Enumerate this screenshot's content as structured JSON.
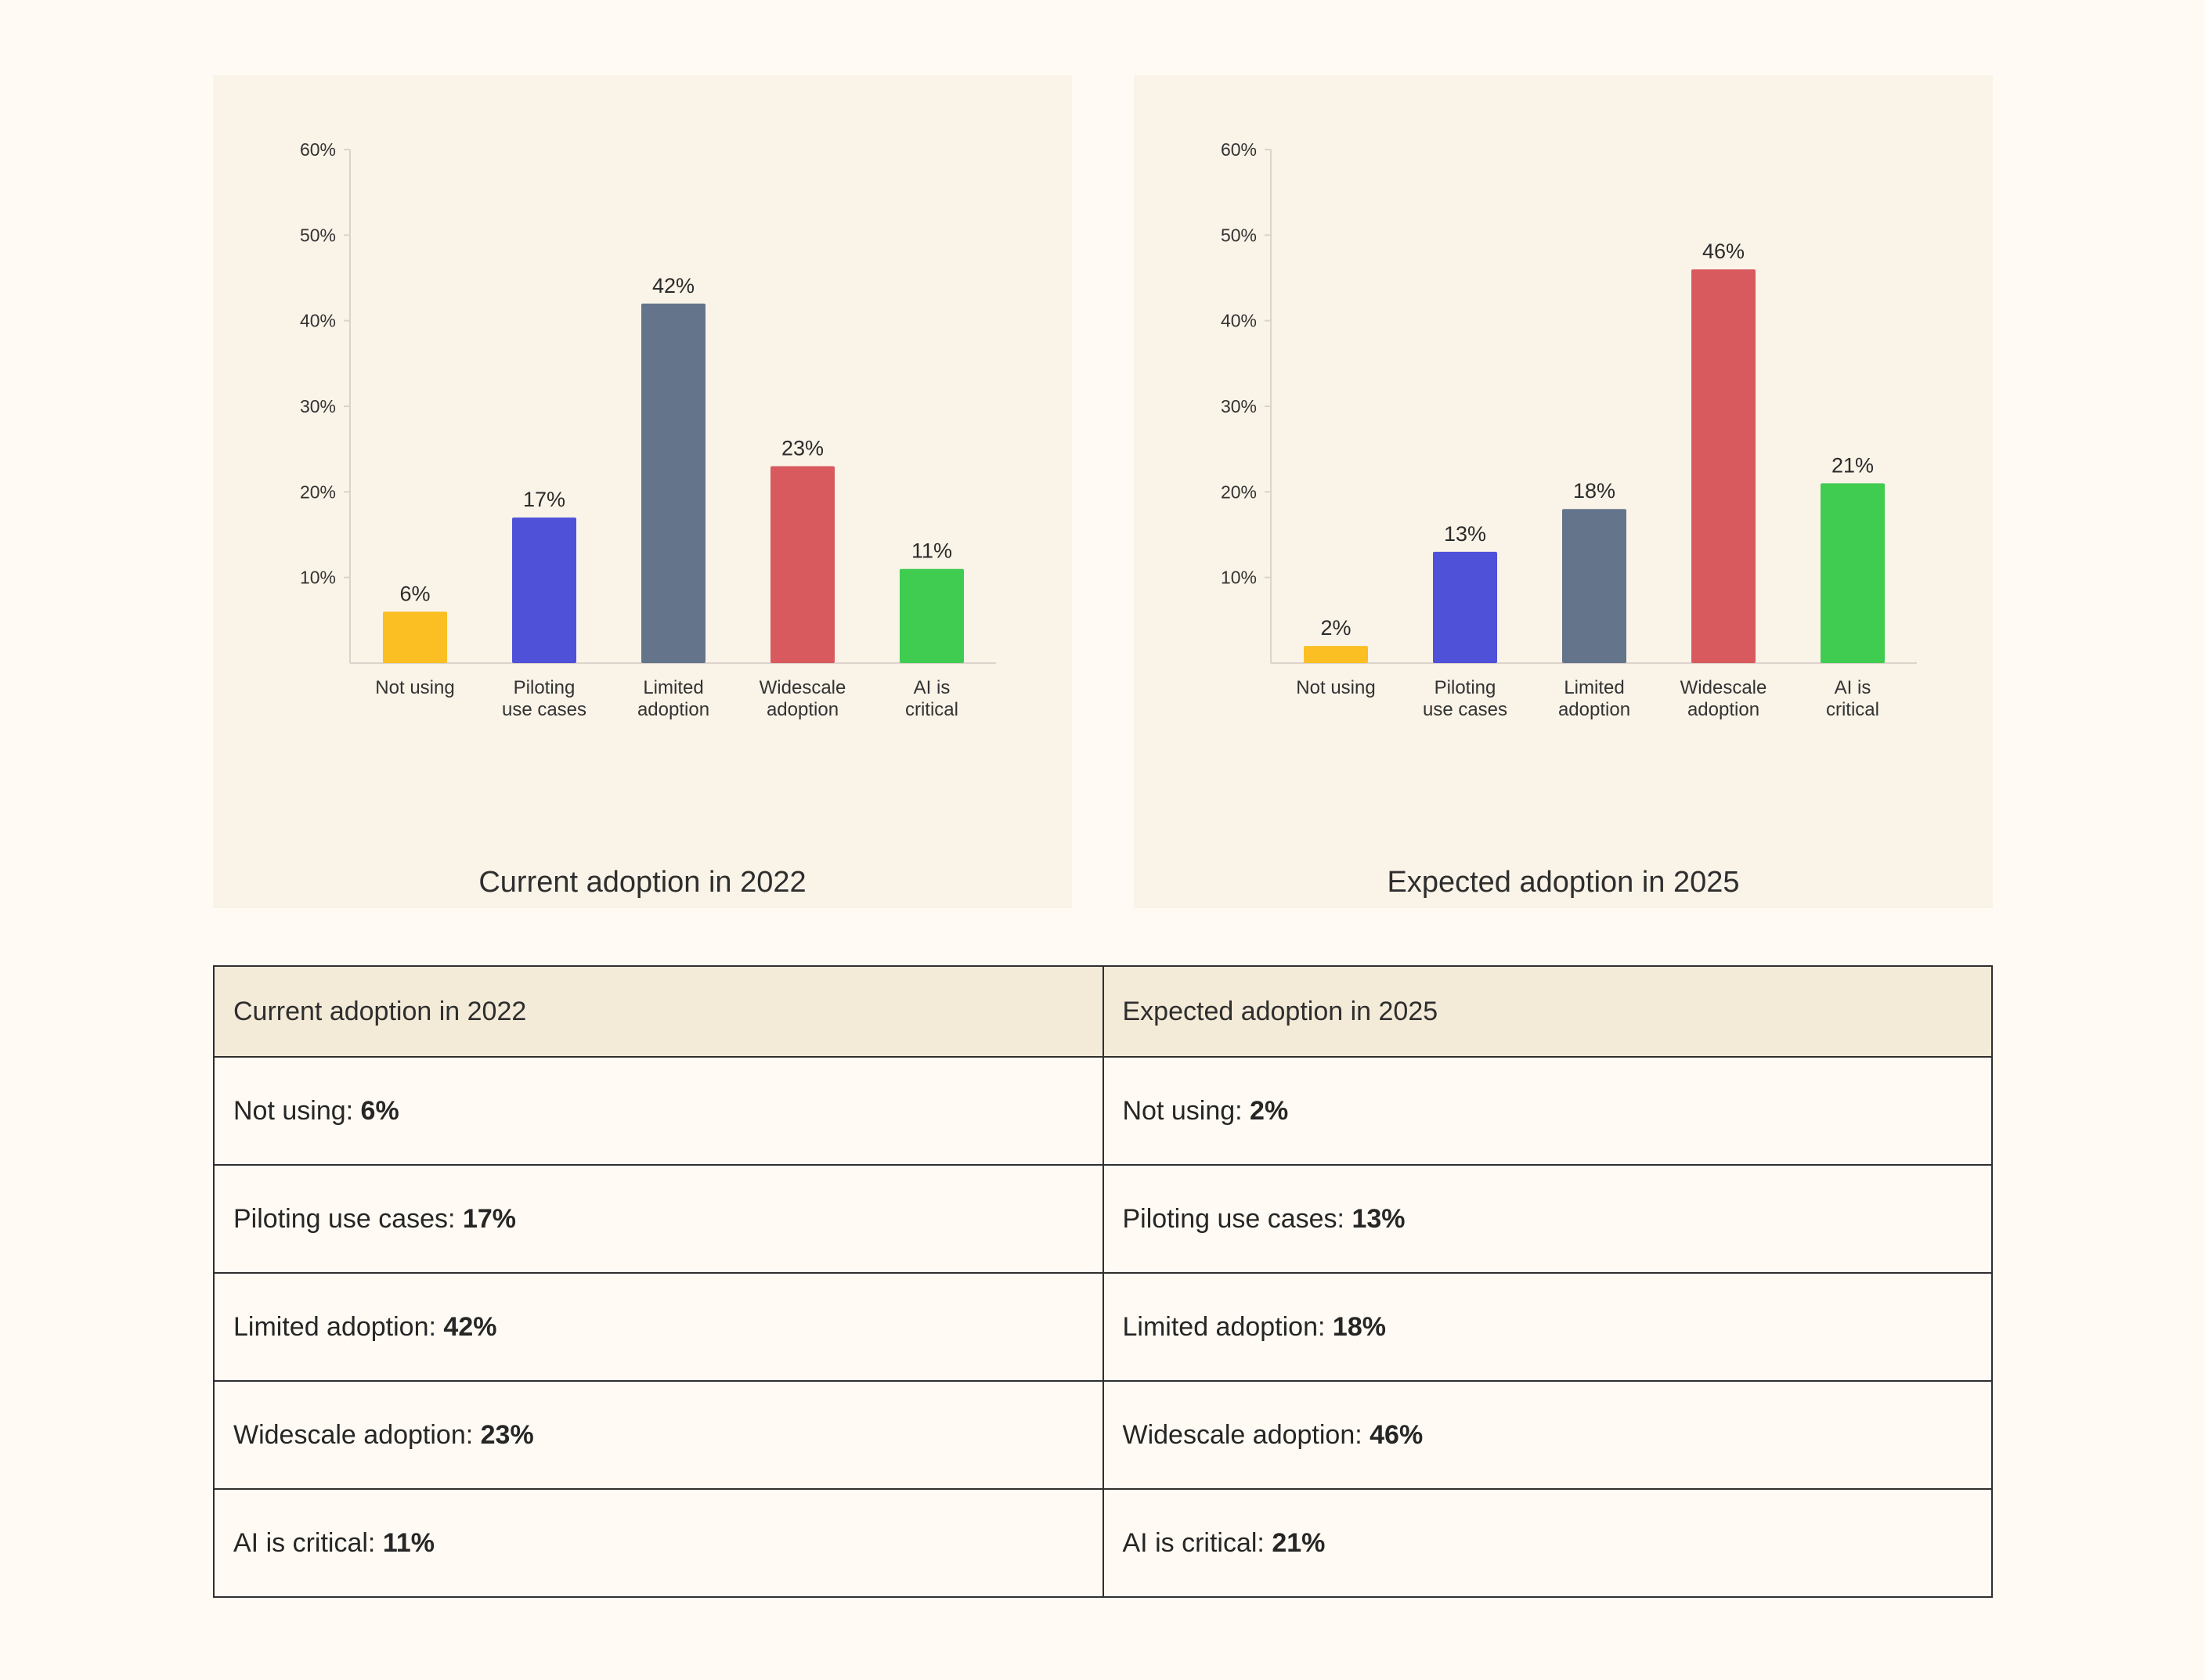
{
  "chart_data": [
    {
      "type": "bar",
      "title": "Current adoption in 2022",
      "categories": [
        [
          "Not using"
        ],
        [
          "Piloting",
          "use cases"
        ],
        [
          "Limited",
          "adoption"
        ],
        [
          "Widescale",
          "adoption"
        ],
        [
          "AI is",
          "critical"
        ]
      ],
      "values": [
        6,
        17,
        42,
        23,
        11
      ],
      "value_labels": [
        "6%",
        "17%",
        "42%",
        "23%",
        "11%"
      ],
      "yticks": [
        "10%",
        "20%",
        "30%",
        "40%",
        "50%",
        "60%"
      ],
      "ylim": [
        0,
        60
      ],
      "colors": [
        "#fbbf24",
        "#4f52d9",
        "#64748b",
        "#d85a5e",
        "#40cb51"
      ],
      "grid": false,
      "legend": "none"
    },
    {
      "type": "bar",
      "title": "Expected adoption in 2025",
      "categories": [
        [
          "Not using"
        ],
        [
          "Piloting",
          "use cases"
        ],
        [
          "Limited",
          "adoption"
        ],
        [
          "Widescale",
          "adoption"
        ],
        [
          "AI is",
          "critical"
        ]
      ],
      "values": [
        2,
        13,
        18,
        46,
        21
      ],
      "value_labels": [
        "2%",
        "13%",
        "18%",
        "46%",
        "21%"
      ],
      "yticks": [
        "10%",
        "20%",
        "30%",
        "40%",
        "50%",
        "60%"
      ],
      "ylim": [
        0,
        60
      ],
      "colors": [
        "#fbbf24",
        "#4f52d9",
        "#64748b",
        "#d85a5e",
        "#40cb51"
      ],
      "grid": false,
      "legend": "none"
    }
  ],
  "table": {
    "headers": [
      "Current adoption in 2022",
      "Expected adoption in 2025"
    ],
    "rows": [
      {
        "left_label": "Not using: ",
        "left_value": "6%",
        "right_label": "Not using: ",
        "right_value": "2%"
      },
      {
        "left_label": "Piloting use cases: ",
        "left_value": "17%",
        "right_label": "Piloting use cases: ",
        "right_value": "13%"
      },
      {
        "left_label": "Limited adoption: ",
        "left_value": "42%",
        "right_label": "Limited adoption: ",
        "right_value": "18%"
      },
      {
        "left_label": "Widescale adoption: ",
        "left_value": "23%",
        "right_label": "Widescale adoption: ",
        "right_value": "46%"
      },
      {
        "left_label": "AI is critical: ",
        "left_value": "11%",
        "right_label": "AI is critical: ",
        "right_value": "21%"
      }
    ]
  }
}
